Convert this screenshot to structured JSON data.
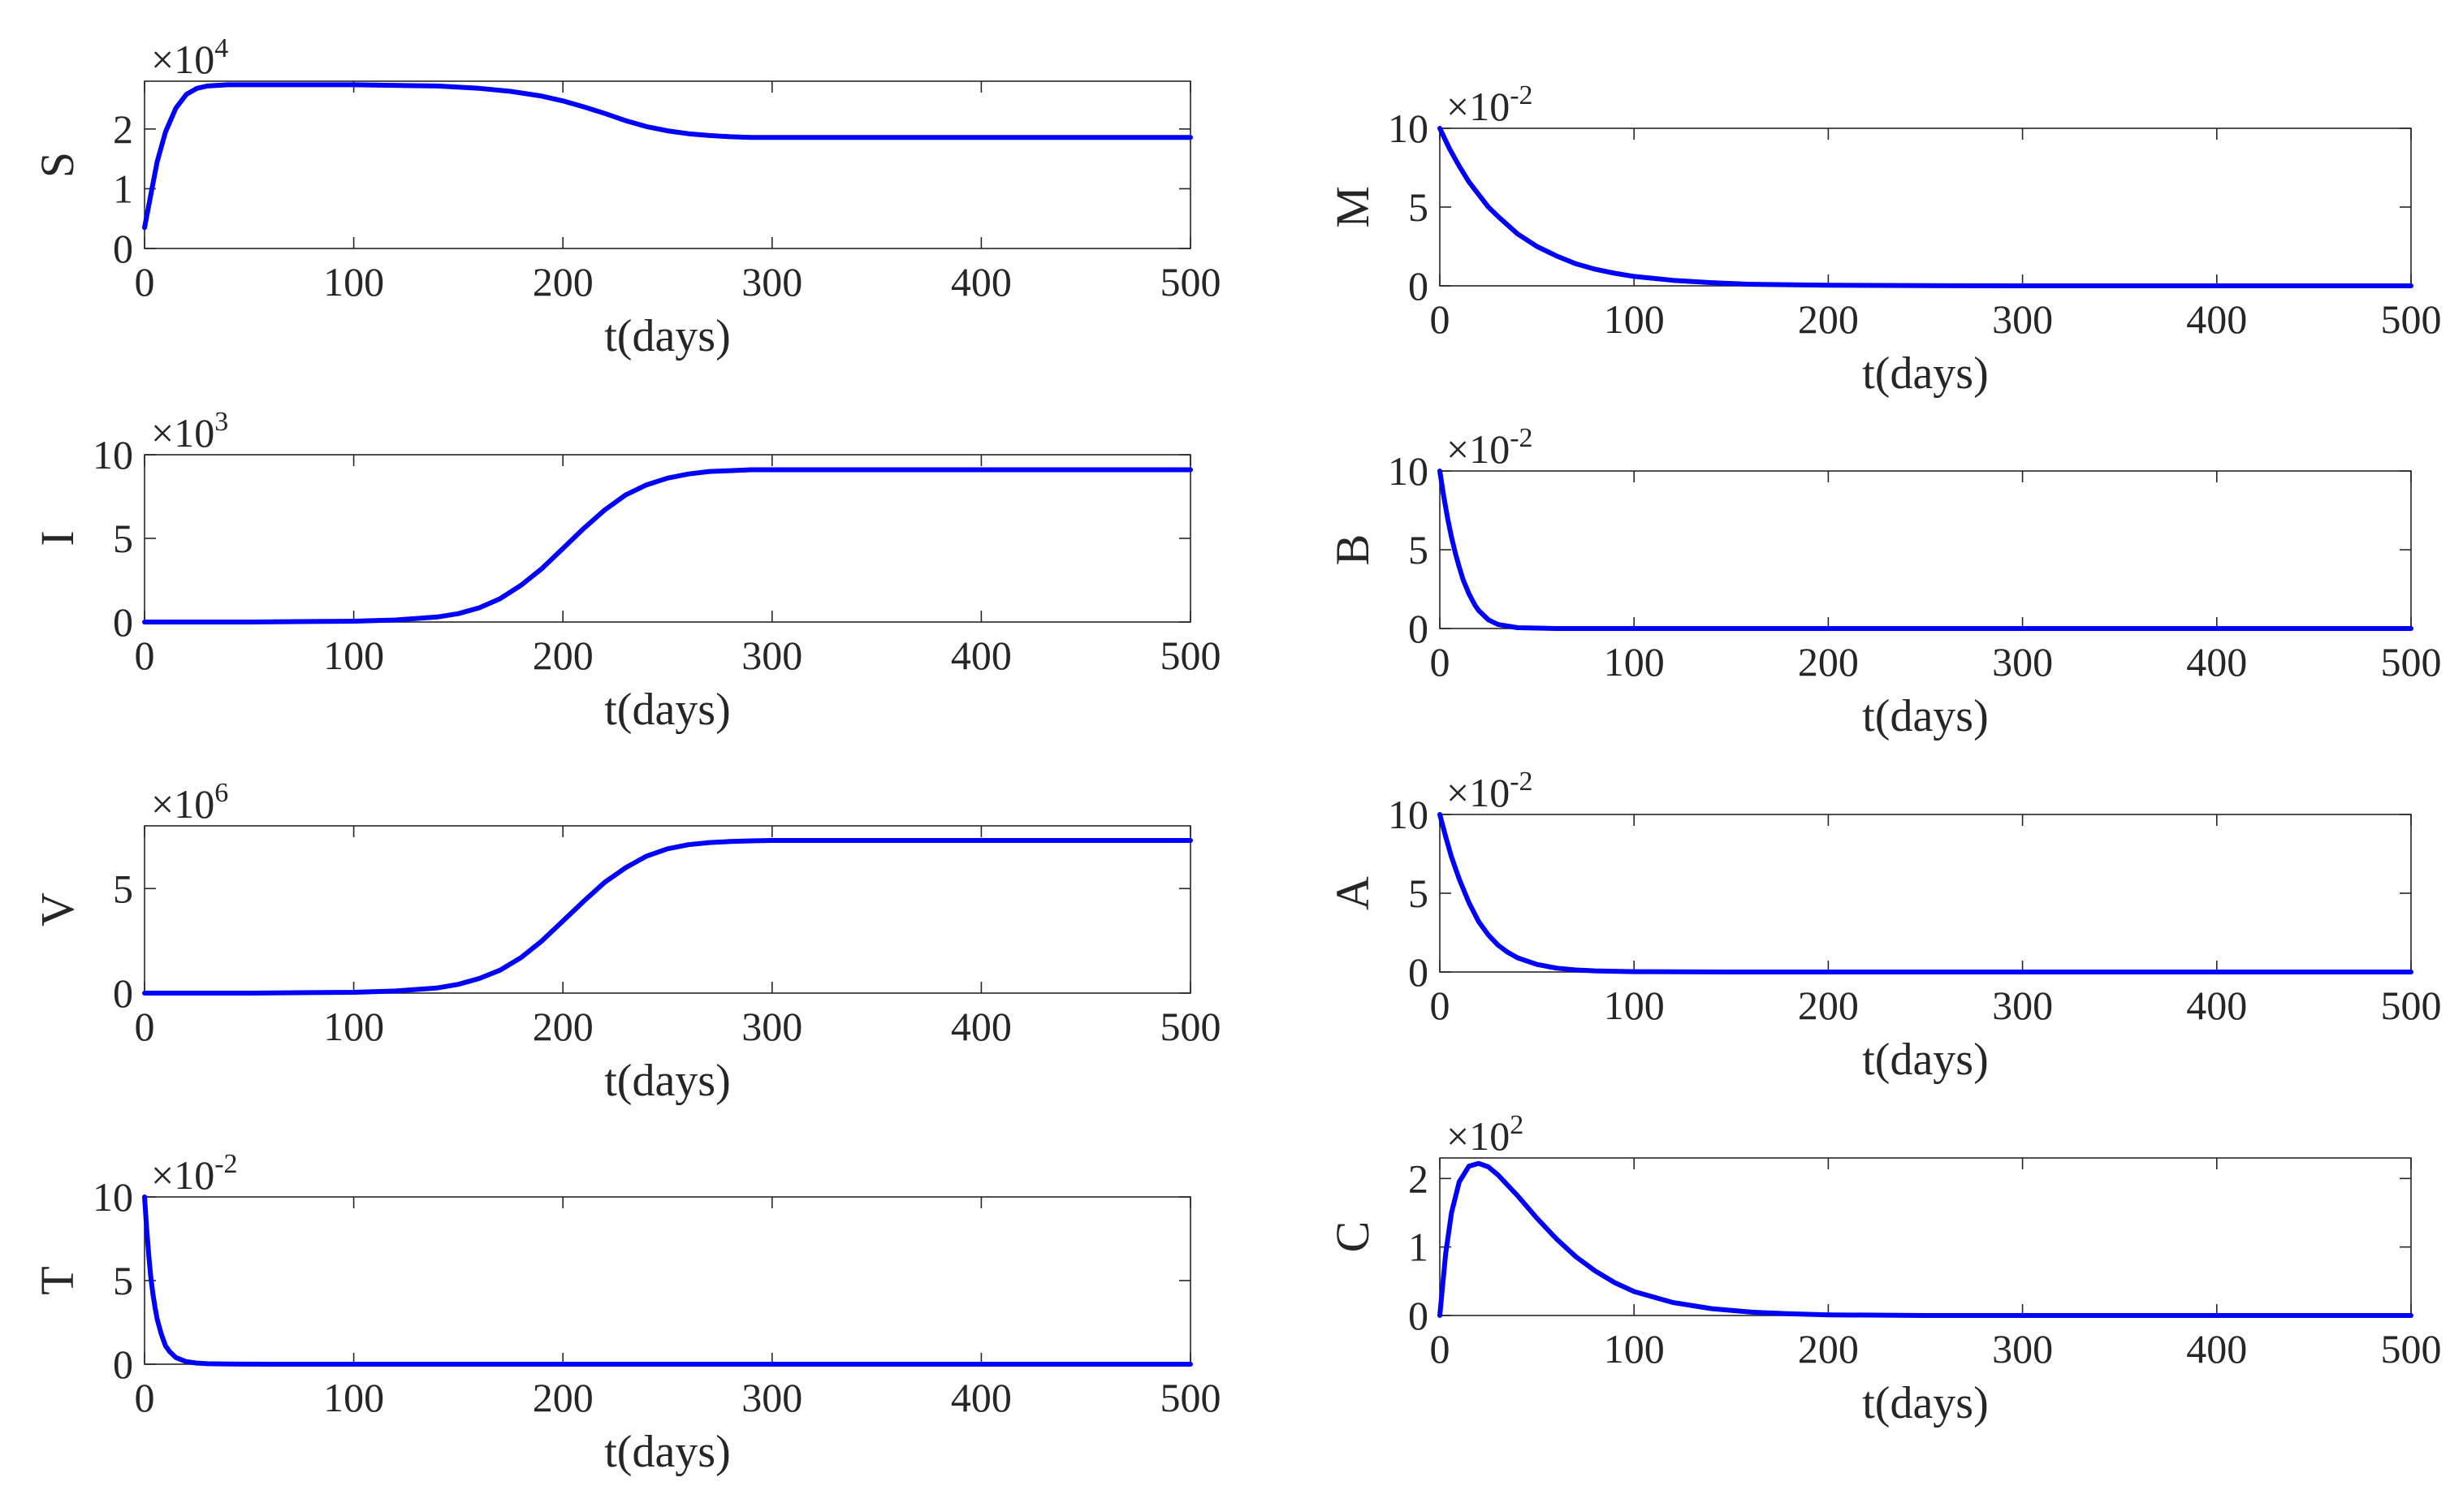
{
  "chart_data": [
    {
      "type": "line",
      "ylabel": "S",
      "xlabel": "t(days)",
      "multiplier": "×10",
      "multiplier_exp": "4",
      "xlim": [
        0,
        500
      ],
      "ylim": [
        0,
        2.8
      ],
      "xticks": [
        "0",
        "100",
        "200",
        "300",
        "400",
        "500"
      ],
      "xtick_values": [
        0,
        100,
        200,
        300,
        400,
        500
      ],
      "yticks": [
        "0",
        "1",
        "2"
      ],
      "ytick_values": [
        0,
        1,
        2
      ],
      "series": [
        {
          "name": "S",
          "color": "#0000ff",
          "x": [
            0,
            3,
            6,
            10,
            15,
            20,
            25,
            30,
            40,
            60,
            100,
            140,
            160,
            175,
            190,
            200,
            210,
            220,
            230,
            240,
            250,
            260,
            270,
            280,
            290,
            300,
            320,
            350,
            400,
            450,
            500
          ],
          "y": [
            0.35,
            0.9,
            1.45,
            1.95,
            2.35,
            2.58,
            2.68,
            2.72,
            2.74,
            2.74,
            2.74,
            2.72,
            2.68,
            2.63,
            2.55,
            2.47,
            2.37,
            2.26,
            2.14,
            2.04,
            1.97,
            1.92,
            1.89,
            1.87,
            1.86,
            1.86,
            1.86,
            1.86,
            1.86,
            1.86,
            1.86
          ]
        }
      ]
    },
    {
      "type": "line",
      "ylabel": "I",
      "xlabel": "t(days)",
      "multiplier": "×10",
      "multiplier_exp": "3",
      "xlim": [
        0,
        500
      ],
      "ylim": [
        0,
        10
      ],
      "xticks": [
        "0",
        "100",
        "200",
        "300",
        "400",
        "500"
      ],
      "xtick_values": [
        0,
        100,
        200,
        300,
        400,
        500
      ],
      "yticks": [
        "0",
        "5",
        "10"
      ],
      "ytick_values": [
        0,
        5,
        10
      ],
      "series": [
        {
          "name": "I",
          "color": "#0000ff",
          "x": [
            0,
            50,
            100,
            120,
            140,
            150,
            160,
            170,
            180,
            190,
            200,
            210,
            220,
            230,
            240,
            250,
            260,
            270,
            280,
            290,
            300,
            320,
            350,
            400,
            450,
            500
          ],
          "y": [
            0,
            0,
            0.05,
            0.12,
            0.3,
            0.5,
            0.85,
            1.4,
            2.2,
            3.2,
            4.4,
            5.6,
            6.7,
            7.6,
            8.2,
            8.6,
            8.85,
            9.0,
            9.05,
            9.1,
            9.1,
            9.1,
            9.1,
            9.1,
            9.1,
            9.1
          ]
        }
      ]
    },
    {
      "type": "line",
      "ylabel": "V",
      "xlabel": "t(days)",
      "multiplier": "×10",
      "multiplier_exp": "6",
      "xlim": [
        0,
        500
      ],
      "ylim": [
        0,
        8
      ],
      "xticks": [
        "0",
        "100",
        "200",
        "300",
        "400",
        "500"
      ],
      "xtick_values": [
        0,
        100,
        200,
        300,
        400,
        500
      ],
      "yticks": [
        "0",
        "5"
      ],
      "ytick_values": [
        0,
        5
      ],
      "series": [
        {
          "name": "V",
          "color": "#0000ff",
          "x": [
            0,
            50,
            100,
            120,
            140,
            150,
            160,
            170,
            180,
            190,
            200,
            210,
            220,
            230,
            240,
            250,
            260,
            270,
            280,
            290,
            300,
            320,
            350,
            400,
            450,
            500
          ],
          "y": [
            0,
            0,
            0.04,
            0.1,
            0.25,
            0.42,
            0.7,
            1.1,
            1.7,
            2.5,
            3.45,
            4.4,
            5.3,
            6.0,
            6.55,
            6.9,
            7.1,
            7.2,
            7.25,
            7.28,
            7.3,
            7.3,
            7.3,
            7.3,
            7.3,
            7.3
          ]
        }
      ]
    },
    {
      "type": "line",
      "ylabel": "T",
      "xlabel": "t(days)",
      "multiplier": "×10",
      "multiplier_exp": "-2",
      "xlim": [
        0,
        500
      ],
      "ylim": [
        0,
        10
      ],
      "xticks": [
        "0",
        "100",
        "200",
        "300",
        "400",
        "500"
      ],
      "xtick_values": [
        0,
        100,
        200,
        300,
        400,
        500
      ],
      "yticks": [
        "0",
        "5",
        "10"
      ],
      "ytick_values": [
        0,
        5,
        10
      ],
      "series": [
        {
          "name": "T",
          "color": "#0000ff",
          "x": [
            0,
            1,
            2,
            3,
            4,
            5,
            6,
            8,
            10,
            12,
            15,
            20,
            25,
            30,
            40,
            60,
            100,
            200,
            300,
            400,
            500
          ],
          "y": [
            10,
            8.1,
            6.5,
            5.2,
            4.2,
            3.4,
            2.7,
            1.8,
            1.1,
            0.75,
            0.4,
            0.15,
            0.07,
            0.03,
            0.01,
            0,
            0,
            0,
            0,
            0,
            0
          ]
        }
      ]
    },
    {
      "type": "line",
      "ylabel": "M",
      "xlabel": "t(days)",
      "multiplier": "×10",
      "multiplier_exp": "-2",
      "xlim": [
        0,
        500
      ],
      "ylim": [
        0,
        10
      ],
      "xticks": [
        "0",
        "100",
        "200",
        "300",
        "400",
        "500"
      ],
      "xtick_values": [
        0,
        100,
        200,
        300,
        400,
        500
      ],
      "yticks": [
        "0",
        "5",
        "10"
      ],
      "ytick_values": [
        0,
        5,
        10
      ],
      "series": [
        {
          "name": "M",
          "color": "#0000ff",
          "x": [
            0,
            5,
            10,
            15,
            20,
            25,
            30,
            40,
            50,
            60,
            70,
            80,
            90,
            100,
            120,
            140,
            160,
            200,
            250,
            300,
            400,
            500
          ],
          "y": [
            10,
            8.7,
            7.6,
            6.6,
            5.8,
            5.0,
            4.4,
            3.3,
            2.5,
            1.9,
            1.4,
            1.05,
            0.8,
            0.6,
            0.35,
            0.2,
            0.1,
            0.04,
            0.01,
            0,
            0,
            0
          ]
        }
      ]
    },
    {
      "type": "line",
      "ylabel": "B",
      "xlabel": "t(days)",
      "multiplier": "×10",
      "multiplier_exp": "-2",
      "xlim": [
        0,
        500
      ],
      "ylim": [
        0,
        10
      ],
      "xticks": [
        "0",
        "100",
        "200",
        "300",
        "400",
        "500"
      ],
      "xtick_values": [
        0,
        100,
        200,
        300,
        400,
        500
      ],
      "yticks": [
        "0",
        "5",
        "10"
      ],
      "ytick_values": [
        0,
        5,
        10
      ],
      "series": [
        {
          "name": "B",
          "color": "#0000ff",
          "x": [
            0,
            2,
            4,
            6,
            8,
            10,
            12,
            15,
            18,
            20,
            25,
            30,
            40,
            60,
            100,
            200,
            300,
            400,
            500
          ],
          "y": [
            10,
            8.4,
            7.0,
            5.8,
            4.8,
            3.9,
            3.1,
            2.2,
            1.5,
            1.15,
            0.55,
            0.25,
            0.05,
            0,
            0,
            0,
            0,
            0,
            0
          ]
        }
      ]
    },
    {
      "type": "line",
      "ylabel": "A",
      "xlabel": "t(days)",
      "multiplier": "×10",
      "multiplier_exp": "-2",
      "xlim": [
        0,
        500
      ],
      "ylim": [
        0,
        10
      ],
      "xticks": [
        "0",
        "100",
        "200",
        "300",
        "400",
        "500"
      ],
      "xtick_values": [
        0,
        100,
        200,
        300,
        400,
        500
      ],
      "yticks": [
        "0",
        "5",
        "10"
      ],
      "ytick_values": [
        0,
        5,
        10
      ],
      "series": [
        {
          "name": "A",
          "color": "#0000ff",
          "x": [
            0,
            3,
            6,
            10,
            15,
            20,
            25,
            30,
            35,
            40,
            50,
            60,
            70,
            80,
            100,
            150,
            200,
            300,
            400,
            500
          ],
          "y": [
            10,
            8.6,
            7.3,
            5.9,
            4.4,
            3.2,
            2.35,
            1.7,
            1.25,
            0.9,
            0.48,
            0.25,
            0.13,
            0.07,
            0.02,
            0,
            0,
            0,
            0,
            0
          ]
        }
      ]
    },
    {
      "type": "line",
      "ylabel": "C",
      "xlabel": "t(days)",
      "multiplier": "×10",
      "multiplier_exp": "2",
      "xlim": [
        0,
        500
      ],
      "ylim": [
        0,
        2.3
      ],
      "xticks": [
        "0",
        "100",
        "200",
        "300",
        "400",
        "500"
      ],
      "xtick_values": [
        0,
        100,
        200,
        300,
        400,
        500
      ],
      "yticks": [
        "0",
        "1",
        "2"
      ],
      "ytick_values": [
        0,
        1,
        2
      ],
      "series": [
        {
          "name": "C",
          "color": "#0000ff",
          "x": [
            0,
            3,
            6,
            10,
            15,
            20,
            25,
            30,
            40,
            50,
            60,
            70,
            80,
            90,
            100,
            120,
            140,
            160,
            180,
            200,
            250,
            300,
            400,
            500
          ],
          "y": [
            0,
            0.9,
            1.5,
            1.95,
            2.18,
            2.22,
            2.17,
            2.05,
            1.75,
            1.42,
            1.12,
            0.86,
            0.65,
            0.48,
            0.35,
            0.19,
            0.1,
            0.05,
            0.025,
            0.01,
            0,
            0,
            0,
            0
          ]
        }
      ]
    }
  ]
}
